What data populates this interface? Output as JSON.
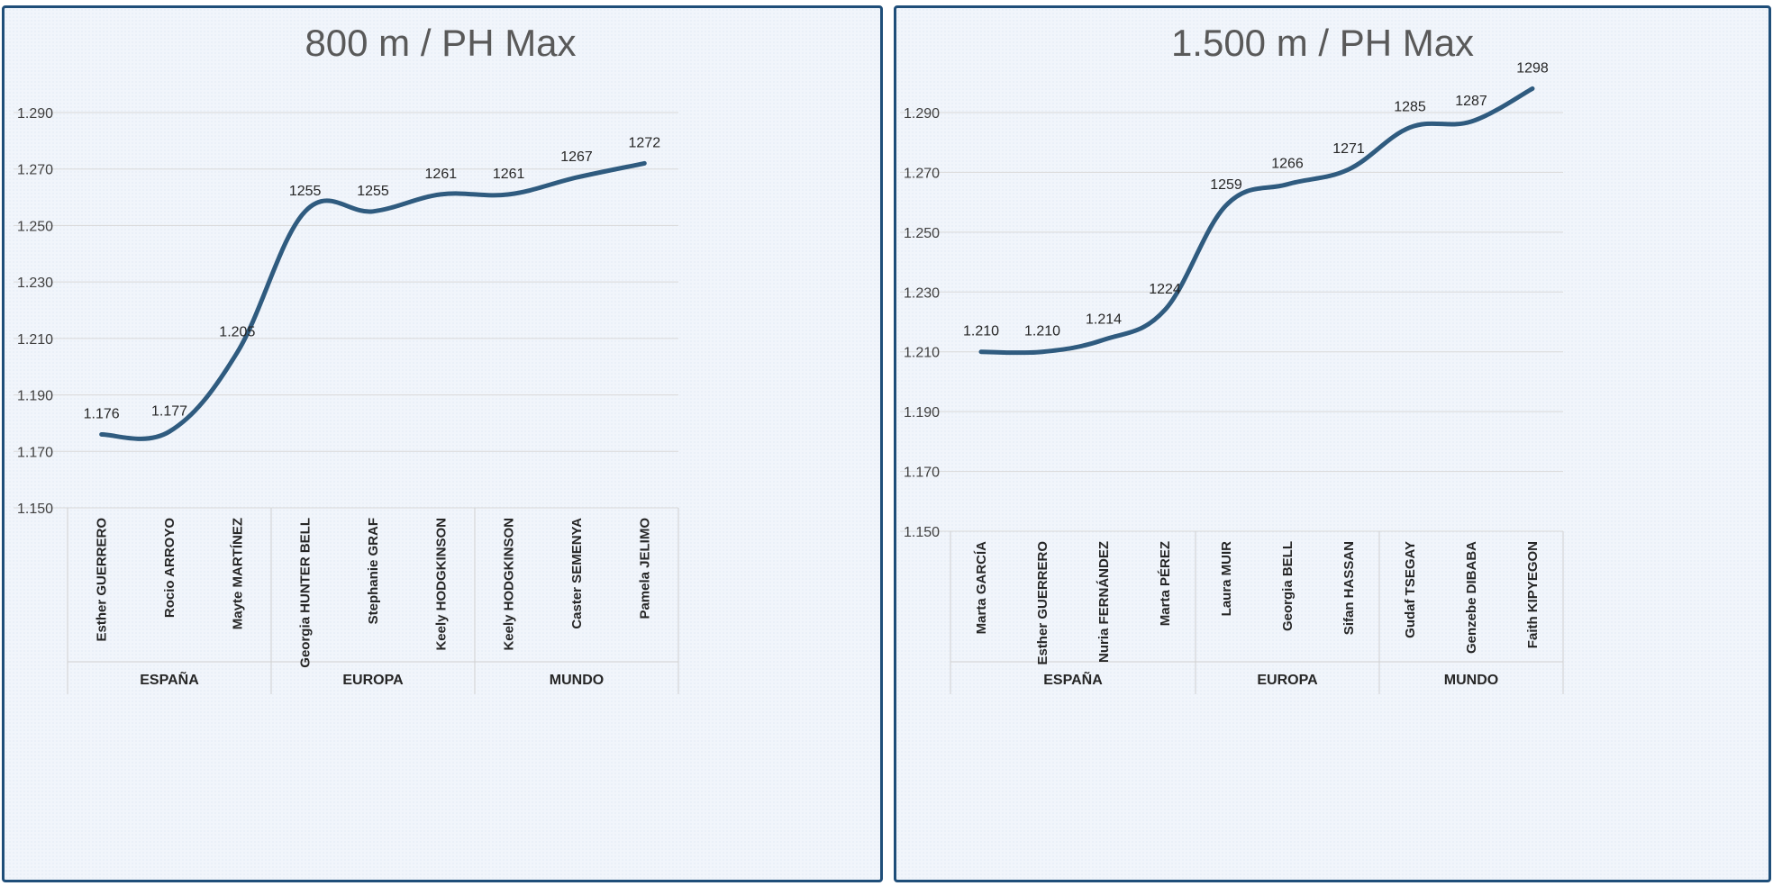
{
  "colors": {
    "line": "#2f5b7f",
    "border": "#1f4e79"
  },
  "chart_data": [
    {
      "type": "line",
      "title": "800 m / PH Max",
      "ylim": [
        1150,
        1290
      ],
      "ytick_values": [
        1150,
        1170,
        1190,
        1210,
        1230,
        1250,
        1270,
        1290
      ],
      "ytick_labels": [
        "1.150",
        "1.170",
        "1.190",
        "1.210",
        "1.230",
        "1.250",
        "1.270",
        "1.290"
      ],
      "categories": [
        "Esther GUERRERO",
        "Rocio ARROYO",
        "Mayte MARTÍNEZ",
        "Georgia HUNTER BELL",
        "Stephanie GRAF",
        "Keely HODGKINSON",
        "Keely HODGKINSON",
        "Caster SEMENYA",
        "Pamela JELIMO"
      ],
      "groups": [
        {
          "label": "ESPAÑA",
          "count": 3
        },
        {
          "label": "EUROPA",
          "count": 3
        },
        {
          "label": "MUNDO",
          "count": 3
        }
      ],
      "values": [
        1176,
        1177,
        1205,
        1255,
        1255,
        1261,
        1261,
        1267,
        1272
      ],
      "data_labels": [
        "1.176",
        "1.177",
        "1.205",
        "1255",
        "1255",
        "1261",
        "1261",
        "1267",
        "1272"
      ],
      "grid": true
    },
    {
      "type": "line",
      "title": "1.500 m / PH Max",
      "ylim": [
        1150,
        1290
      ],
      "ytick_values": [
        1150,
        1170,
        1190,
        1210,
        1230,
        1250,
        1270,
        1290
      ],
      "ytick_labels": [
        "1.150",
        "1.170",
        "1.190",
        "1.210",
        "1.230",
        "1.250",
        "1.270",
        "1.290"
      ],
      "categories": [
        "Marta GARCÍA",
        "Esther GUERRERO",
        "Nuria FERNÁNDEZ",
        "Marta PÉREZ",
        "Laura MUIR",
        "Georgia BELL",
        "Sifan HASSAN",
        "Gudaf TSEGAY",
        "Genzebe DIBABA",
        "Faith KIPYEGON"
      ],
      "groups": [
        {
          "label": "ESPAÑA",
          "count": 4
        },
        {
          "label": "EUROPA",
          "count": 3
        },
        {
          "label": "MUNDO",
          "count": 3
        }
      ],
      "values": [
        1210,
        1210,
        1214,
        1224,
        1259,
        1266,
        1271,
        1285,
        1287,
        1298
      ],
      "data_labels": [
        "1.210",
        "1.210",
        "1.214",
        "1224",
        "1259",
        "1266",
        "1271",
        "1285",
        "1287",
        "1298"
      ],
      "grid": true
    }
  ]
}
